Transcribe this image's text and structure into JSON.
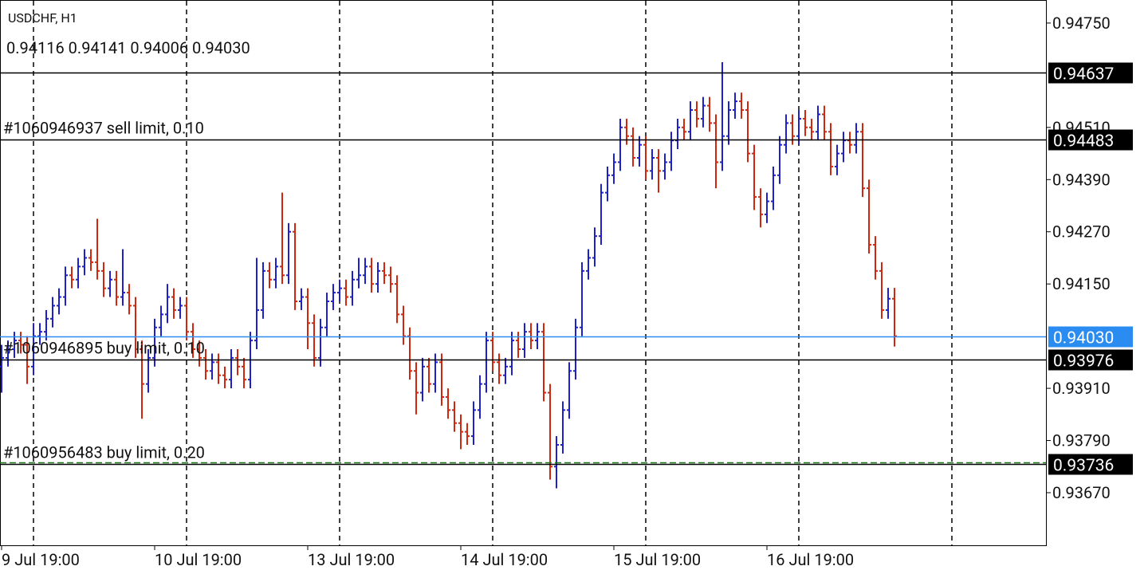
{
  "chart_data": {
    "type": "ohlc",
    "title": "USDCHF, H1",
    "subtitle": "0.94116 0.94141 0.94006 0.94030",
    "up_color": "#2020c8",
    "down_color": "#d02810",
    "categories": [
      "9 Jul 19:00",
      null,
      null,
      null,
      null,
      null,
      null,
      null,
      null,
      null,
      null,
      null,
      null,
      null,
      null,
      null,
      null,
      null,
      null,
      null,
      null,
      null,
      null,
      null,
      "10 Jul 19:00",
      null,
      null,
      null,
      null,
      null,
      null,
      null,
      null,
      null,
      null,
      null,
      null,
      null,
      null,
      null,
      null,
      null,
      null,
      null,
      null,
      null,
      null,
      null,
      "13 Jul 19:00",
      null,
      null,
      null,
      null,
      null,
      null,
      null,
      null,
      null,
      null,
      null,
      null,
      null,
      null,
      null,
      null,
      null,
      null,
      null,
      null,
      null,
      null,
      null,
      "14 Jul 19:00",
      null,
      null,
      null,
      null,
      null,
      null,
      null,
      null,
      null,
      null,
      null,
      null,
      null,
      null,
      null,
      null,
      null,
      null,
      null,
      null,
      null,
      null,
      null,
      "15 Jul 19:00",
      null,
      null,
      null,
      null,
      null,
      null,
      null,
      null,
      null,
      null,
      null,
      null,
      null,
      null,
      null,
      null,
      null,
      null,
      null,
      null,
      null,
      null,
      null,
      "16 Jul 19:00",
      null,
      null,
      null,
      null,
      null,
      null,
      null,
      null,
      null,
      null,
      null,
      null,
      null,
      null,
      null,
      null,
      null,
      null,
      null,
      null
    ],
    "series": [
      {
        "name": "open",
        "values": [
          0.9396,
          0.9398,
          0.94,
          0.9402,
          0.9401,
          0.9396,
          0.9403,
          0.9404,
          0.9407,
          0.941,
          0.9412,
          0.9417,
          0.9416,
          0.9419,
          0.9421,
          0.942,
          0.9418,
          0.9414,
          0.9416,
          0.9412,
          0.9413,
          0.941,
          0.94,
          0.9392,
          0.9398,
          0.9405,
          0.9408,
          0.9412,
          0.9409,
          0.941,
          0.9404,
          0.94,
          0.9398,
          0.9395,
          0.9397,
          0.9394,
          0.9393,
          0.9398,
          0.9396,
          0.9393,
          0.9402,
          0.9409,
          0.9418,
          0.9416,
          0.9419,
          0.9417,
          0.9427,
          0.9411,
          0.9412,
          0.9406,
          0.9398,
          0.9405,
          0.9411,
          0.9413,
          0.9414,
          0.9412,
          0.9416,
          0.9417,
          0.9419,
          0.9415,
          0.9418,
          0.9417,
          0.9415,
          0.9408,
          0.9403,
          0.9395,
          0.939,
          0.9396,
          0.9392,
          0.9397,
          0.9389,
          0.9386,
          0.9383,
          0.9381,
          0.938,
          0.9386,
          0.9392,
          0.9402,
          0.9397,
          0.9394,
          0.9396,
          0.9402,
          0.94,
          0.9404,
          0.9402,
          0.9404,
          0.939,
          0.9373,
          0.9378,
          0.9386,
          0.9395,
          0.9405,
          0.9418,
          0.9421,
          0.9426,
          0.9436,
          0.944,
          0.9443,
          0.9451,
          0.9449,
          0.9444,
          0.9447,
          0.9441,
          0.9444,
          0.9441,
          0.9443,
          0.9448,
          0.9451,
          0.945,
          0.9455,
          0.9453,
          0.9456,
          0.9452,
          0.9443,
          0.9449,
          0.9455,
          0.9457,
          0.9455,
          0.9445,
          0.9435,
          0.9431,
          0.9434,
          0.944,
          0.9447,
          0.9452,
          0.9449,
          0.9453,
          0.9451,
          0.945,
          0.9454,
          0.945,
          0.9442,
          0.9445,
          0.9448,
          0.9447,
          0.945,
          0.9437,
          0.9424,
          0.9418,
          0.9409,
          0.94116
        ]
      },
      {
        "name": "high",
        "values": [
          0.9401,
          0.9402,
          0.9404,
          0.9404,
          0.9403,
          0.9406,
          0.9406,
          0.9409,
          0.9412,
          0.9414,
          0.9419,
          0.9419,
          0.9421,
          0.9423,
          0.9423,
          0.943,
          0.942,
          0.9418,
          0.9418,
          0.9423,
          0.9415,
          0.9412,
          0.9402,
          0.94,
          0.9407,
          0.941,
          0.9415,
          0.9414,
          0.9412,
          0.9412,
          0.9406,
          0.9402,
          0.94,
          0.9399,
          0.9399,
          0.9396,
          0.94,
          0.94,
          0.9398,
          0.9404,
          0.9421,
          0.942,
          0.942,
          0.9421,
          0.9436,
          0.9429,
          0.9429,
          0.9414,
          0.9414,
          0.9408,
          0.9407,
          0.9413,
          0.9415,
          0.9416,
          0.9416,
          0.9418,
          0.9421,
          0.9421,
          0.9421,
          0.942,
          0.942,
          0.9419,
          0.9417,
          0.941,
          0.9405,
          0.9397,
          0.9398,
          0.9398,
          0.9399,
          0.9399,
          0.9391,
          0.9388,
          0.9385,
          0.9383,
          0.9388,
          0.9394,
          0.9404,
          0.9404,
          0.9399,
          0.9398,
          0.9404,
          0.9404,
          0.9406,
          0.9406,
          0.9406,
          0.9406,
          0.9392,
          0.938,
          0.9388,
          0.9397,
          0.9407,
          0.942,
          0.9423,
          0.9428,
          0.9438,
          0.9442,
          0.9445,
          0.9453,
          0.9453,
          0.9451,
          0.9449,
          0.9449,
          0.9446,
          0.9446,
          0.9445,
          0.945,
          0.9453,
          0.9453,
          0.9457,
          0.9457,
          0.9458,
          0.9458,
          0.9454,
          0.9466,
          0.9457,
          0.9459,
          0.9459,
          0.9457,
          0.9447,
          0.9437,
          0.9436,
          0.9442,
          0.9449,
          0.9454,
          0.9454,
          0.9455,
          0.9455,
          0.9453,
          0.9456,
          0.9456,
          0.9452,
          0.9447,
          0.945,
          0.945,
          0.9452,
          0.9452,
          0.9439,
          0.9426,
          0.942,
          0.94141,
          0.94141
        ]
      },
      {
        "name": "low",
        "values": [
          0.939,
          0.9396,
          0.9398,
          0.9399,
          0.9392,
          0.9394,
          0.9401,
          0.9402,
          0.9405,
          0.9408,
          0.941,
          0.9414,
          0.9414,
          0.9417,
          0.9418,
          0.9416,
          0.9412,
          0.9412,
          0.941,
          0.941,
          0.9408,
          0.9398,
          0.9384,
          0.939,
          0.9396,
          0.9403,
          0.9406,
          0.9407,
          0.9407,
          0.9402,
          0.9398,
          0.9396,
          0.9393,
          0.9393,
          0.9392,
          0.9391,
          0.9391,
          0.9394,
          0.9391,
          0.9391,
          0.94,
          0.9407,
          0.9414,
          0.9414,
          0.9415,
          0.9415,
          0.9409,
          0.9409,
          0.94,
          0.9396,
          0.9396,
          0.9403,
          0.9409,
          0.9411,
          0.941,
          0.941,
          0.9414,
          0.9415,
          0.9413,
          0.9413,
          0.9415,
          0.9413,
          0.9406,
          0.9401,
          0.9393,
          0.9385,
          0.9388,
          0.939,
          0.939,
          0.9387,
          0.9384,
          0.9381,
          0.9377,
          0.9378,
          0.9378,
          0.9384,
          0.939,
          0.9395,
          0.9392,
          0.9392,
          0.9394,
          0.9398,
          0.9398,
          0.94,
          0.94,
          0.9388,
          0.937,
          0.9368,
          0.9376,
          0.9384,
          0.9393,
          0.9403,
          0.9416,
          0.9419,
          0.9424,
          0.9434,
          0.9438,
          0.9441,
          0.9447,
          0.9442,
          0.9442,
          0.9439,
          0.9439,
          0.9436,
          0.9439,
          0.9441,
          0.9446,
          0.9448,
          0.9448,
          0.9451,
          0.9451,
          0.945,
          0.9437,
          0.9441,
          0.9447,
          0.9453,
          0.9453,
          0.9443,
          0.9432,
          0.9428,
          0.9429,
          0.9432,
          0.9438,
          0.9445,
          0.9447,
          0.9447,
          0.9449,
          0.9448,
          0.9448,
          0.9448,
          0.944,
          0.944,
          0.9443,
          0.9445,
          0.9445,
          0.9435,
          0.9422,
          0.9416,
          0.9407,
          0.9407,
          0.94006
        ]
      },
      {
        "name": "close",
        "values": [
          0.9398,
          0.94,
          0.9402,
          0.9401,
          0.9396,
          0.9403,
          0.9404,
          0.9407,
          0.941,
          0.9412,
          0.9417,
          0.9416,
          0.9419,
          0.9421,
          0.942,
          0.9418,
          0.9414,
          0.9416,
          0.9412,
          0.9413,
          0.941,
          0.94,
          0.9392,
          0.9398,
          0.9405,
          0.9408,
          0.9412,
          0.9409,
          0.941,
          0.9404,
          0.94,
          0.9398,
          0.9395,
          0.9397,
          0.9394,
          0.9393,
          0.9398,
          0.9396,
          0.9393,
          0.9402,
          0.9409,
          0.9418,
          0.9416,
          0.9419,
          0.9417,
          0.9427,
          0.9411,
          0.9412,
          0.9406,
          0.9398,
          0.9405,
          0.9411,
          0.9413,
          0.9414,
          0.9412,
          0.9416,
          0.9417,
          0.9419,
          0.9415,
          0.9418,
          0.9417,
          0.9415,
          0.9408,
          0.9403,
          0.9395,
          0.939,
          0.9396,
          0.9392,
          0.9397,
          0.9389,
          0.9386,
          0.9383,
          0.9381,
          0.938,
          0.9386,
          0.9392,
          0.9402,
          0.9397,
          0.9394,
          0.9396,
          0.9402,
          0.94,
          0.9404,
          0.9402,
          0.9404,
          0.939,
          0.9373,
          0.9378,
          0.9386,
          0.9395,
          0.9405,
          0.9418,
          0.9421,
          0.9426,
          0.9436,
          0.944,
          0.9443,
          0.9451,
          0.9449,
          0.9444,
          0.9447,
          0.9441,
          0.9444,
          0.9441,
          0.9443,
          0.9448,
          0.9451,
          0.945,
          0.9455,
          0.9453,
          0.9456,
          0.9452,
          0.9443,
          0.9449,
          0.9455,
          0.9457,
          0.9455,
          0.9445,
          0.9435,
          0.9431,
          0.9434,
          0.944,
          0.9447,
          0.9452,
          0.9449,
          0.9453,
          0.9451,
          0.945,
          0.9454,
          0.945,
          0.9442,
          0.9445,
          0.9448,
          0.9447,
          0.945,
          0.9437,
          0.9424,
          0.9418,
          0.9409,
          0.94116,
          0.9403
        ]
      }
    ],
    "ylim": [
      0.93549,
      0.94803
    ],
    "yticks": [
      {
        "value": 0.9475,
        "label": "0.94750"
      },
      {
        "value": 0.9451,
        "label": "0.94510"
      },
      {
        "value": 0.9439,
        "label": "0.94390"
      },
      {
        "value": 0.9427,
        "label": "0.94270"
      },
      {
        "value": 0.9415,
        "label": "0.94150"
      },
      {
        "value": 0.9391,
        "label": "0.93910"
      },
      {
        "value": 0.9379,
        "label": "0.93790"
      },
      {
        "value": 0.9367,
        "label": "0.93670"
      }
    ],
    "levels": [
      {
        "value": 0.94637,
        "label": "0.94637",
        "color": "#000000"
      },
      {
        "value": 0.94483,
        "label": "0.94483",
        "color": "#000000",
        "order": "#1060946937 sell limit, 0.10"
      },
      {
        "value": 0.9403,
        "label": "0.94030",
        "color": "#2a8cf0"
      },
      {
        "value": 0.93976,
        "label": "0.93976",
        "color": "#000000",
        "order": "#1060946895 buy limit, 0.10"
      },
      {
        "value": 0.93736,
        "label": "0.93736",
        "color": "#000000",
        "order": "#1060956483 buy limit, 0.20",
        "dashed_color": "#1a7a1a"
      }
    ]
  }
}
